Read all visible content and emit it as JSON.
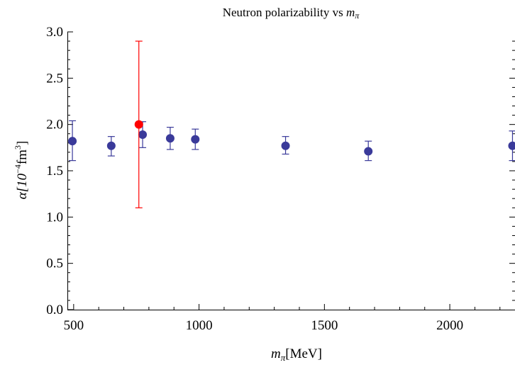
{
  "chart_data": {
    "type": "scatter",
    "title_text": "Neutron polarizability vs ",
    "title_sym": "m",
    "title_sub": "π",
    "xlabel_sym": "m",
    "xlabel_sub": "π",
    "xlabel_unit": "[MeV]",
    "ylabel_main": "α[10",
    "ylabel_exp": "−4",
    "ylabel_unit": "fm",
    "ylabel_unit_exp": "3",
    "ylabel_close": "]",
    "xlim": [
      475,
      2260
    ],
    "ylim": [
      0,
      3
    ],
    "x_ticks": [
      500,
      1000,
      1500,
      2000
    ],
    "x_tick_labels": [
      "500",
      "1000",
      "1500",
      "2000"
    ],
    "y_ticks": [
      0,
      0.5,
      1,
      1.5,
      2,
      2.5,
      3
    ],
    "y_tick_labels": [
      "0.0",
      "0.5",
      "1.0",
      "1.5",
      "2.0",
      "2.5",
      "3.0"
    ],
    "grid": false,
    "series": [
      {
        "color": "#3a3a9a",
        "points": [
          {
            "x": 495,
            "y": 1.82,
            "err_low": 0.21,
            "err_high": 0.22
          },
          {
            "x": 650,
            "y": 1.77,
            "err_low": 0.11,
            "err_high": 0.1
          },
          {
            "x": 775,
            "y": 1.89,
            "err_low": 0.14,
            "err_high": 0.14
          },
          {
            "x": 885,
            "y": 1.85,
            "err_low": 0.12,
            "err_high": 0.12
          },
          {
            "x": 985,
            "y": 1.84,
            "err_low": 0.11,
            "err_high": 0.11
          },
          {
            "x": 1345,
            "y": 1.77,
            "err_low": 0.09,
            "err_high": 0.1
          },
          {
            "x": 1675,
            "y": 1.71,
            "err_low": 0.1,
            "err_high": 0.11
          },
          {
            "x": 2250,
            "y": 1.77,
            "err_low": 0.16,
            "err_high": 0.16
          }
        ]
      },
      {
        "color": "#ff0000",
        "points": [
          {
            "x": 760,
            "y": 2.0,
            "err_low": 0.9,
            "err_high": 0.9
          }
        ]
      }
    ]
  }
}
